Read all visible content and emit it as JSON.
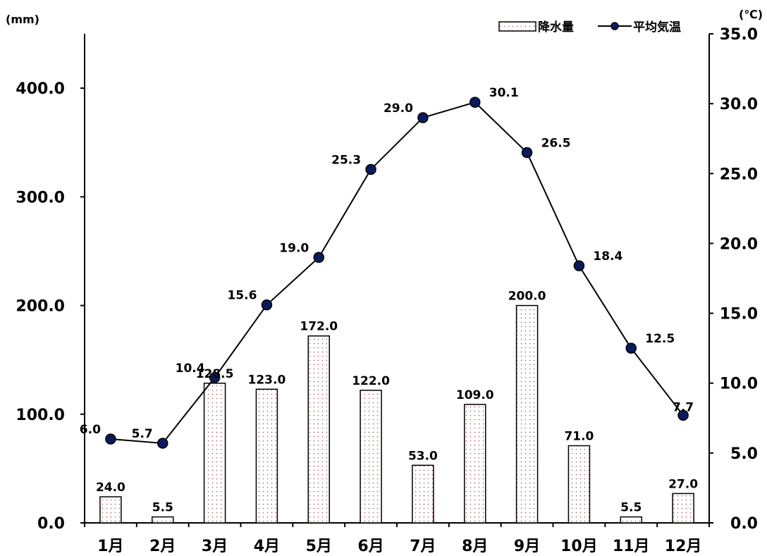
{
  "chart_data": {
    "type": "bar+line",
    "categories": [
      "1月",
      "2月",
      "3月",
      "4月",
      "5月",
      "6月",
      "7月",
      "8月",
      "9月",
      "10月",
      "11月",
      "12月"
    ],
    "series": [
      {
        "name": "降水量",
        "type": "bar",
        "axis": "left",
        "values": [
          24.0,
          5.5,
          128.5,
          123.0,
          172.0,
          122.0,
          53.0,
          109.0,
          200.0,
          71.0,
          5.5,
          27.0
        ]
      },
      {
        "name": "平均気温",
        "type": "line",
        "axis": "right",
        "values": [
          6.0,
          5.7,
          10.4,
          15.6,
          19.0,
          25.3,
          29.0,
          30.1,
          26.5,
          18.4,
          12.5,
          7.7
        ]
      }
    ],
    "y_left": {
      "unit": "(mm)",
      "ylim": [
        0,
        450
      ],
      "ticks": [
        "0.0",
        "100.0",
        "200.0",
        "300.0",
        "400.0"
      ]
    },
    "y_right": {
      "unit": "(℃)",
      "ylim": [
        0,
        35
      ],
      "ticks": [
        "0.0",
        "5.0",
        "10.0",
        "15.0",
        "20.0",
        "25.0",
        "30.0",
        "35.0"
      ]
    },
    "legend": {
      "position": "top-right",
      "items": [
        "降水量",
        "平均気温"
      ]
    },
    "grid": false,
    "colors": {
      "bar_fill": "#ffffff",
      "bar_dots": "#a35a5a",
      "line": "#000000",
      "marker": "#0a1a5c"
    }
  }
}
